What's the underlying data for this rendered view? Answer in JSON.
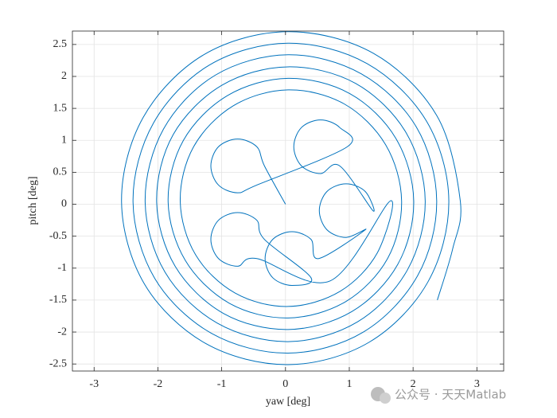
{
  "chart_data": {
    "type": "line",
    "xlabel": "yaw [deg]",
    "ylabel": "pitch [deg]",
    "watermark": "公众号 · 天天Matlab",
    "color": "#0072bd",
    "grid": true,
    "xlim": [
      -3.34,
      3.42
    ],
    "ylim": [
      -2.61,
      2.71
    ],
    "xticks": [
      -3,
      -2,
      -1,
      0,
      1,
      2,
      3
    ],
    "yticks": [
      -2.5,
      -2,
      -1.5,
      -1,
      -0.5,
      0,
      0.5,
      1,
      1.5,
      2,
      2.5
    ],
    "x": [
      0.0,
      -0.33,
      -0.45,
      -0.75,
      -1.05,
      -1.17,
      -1.05,
      -0.75,
      -0.45,
      0.97,
      0.85,
      0.55,
      0.25,
      0.13,
      0.25,
      0.55,
      0.85,
      1.37,
      1.25,
      0.95,
      0.65,
      0.53,
      0.65,
      0.95,
      1.25,
      0.52,
      0.4,
      0.1,
      -0.2,
      -0.32,
      -0.2,
      0.1,
      0.4,
      -0.33,
      -0.45,
      -0.75,
      -1.05,
      -1.17,
      -1.05,
      -0.75,
      -0.45,
      0.7,
      1.64,
      1.44,
      0.86,
      0.04,
      -0.79,
      -1.41,
      -1.65,
      -1.44,
      -0.82,
      0.04,
      0.92,
      1.57,
      1.82,
      1.6,
      0.95,
      0.04,
      -0.88,
      -1.57,
      -1.84,
      -1.6,
      -0.91,
      0.04,
      1.01,
      1.73,
      2.01,
      1.76,
      1.04,
      0.04,
      -0.97,
      -1.73,
      -2.02,
      -1.76,
      -1.0,
      0.04,
      1.1,
      1.89,
      2.19,
      1.91,
      1.13,
      0.04,
      -1.07,
      -1.89,
      -2.2,
      -1.91,
      -1.1,
      0.04,
      1.19,
      2.05,
      2.37,
      2.07,
      1.22,
      0.04,
      -1.16,
      -2.05,
      -2.39,
      -2.07,
      -1.19,
      0.04,
      1.28,
      2.21,
      2.56,
      2.23,
      1.31,
      0.04,
      -1.25,
      -2.21,
      -2.57,
      -2.23,
      -1.28,
      0.04,
      1.38,
      2.37,
      2.74,
      2.62,
      2.38
    ],
    "y": [
      0.0,
      0.6,
      0.9,
      1.02,
      0.9,
      0.6,
      0.3,
      0.18,
      0.3,
      0.9,
      1.2,
      1.32,
      1.2,
      0.9,
      0.6,
      0.48,
      0.6,
      -0.1,
      0.2,
      0.32,
      0.2,
      -0.1,
      -0.4,
      -0.52,
      -0.4,
      -0.85,
      -0.55,
      -0.43,
      -0.55,
      -0.85,
      -1.15,
      -1.27,
      -1.15,
      -0.55,
      -0.25,
      -0.13,
      -0.25,
      -0.55,
      -0.85,
      -0.97,
      -0.85,
      -1.2,
      0.05,
      -0.76,
      -1.36,
      -1.6,
      -1.39,
      -0.79,
      0.05,
      0.9,
      1.54,
      1.79,
      1.57,
      0.93,
      0.05,
      -0.85,
      -1.52,
      -1.78,
      -1.55,
      -0.88,
      0.05,
      1.0,
      1.7,
      1.97,
      1.73,
      1.03,
      0.05,
      -0.94,
      -1.68,
      -1.96,
      -1.71,
      -0.97,
      0.05,
      1.09,
      1.86,
      2.15,
      1.89,
      1.12,
      0.05,
      -1.03,
      -1.84,
      -2.15,
      -1.86,
      -1.06,
      0.05,
      1.18,
      2.02,
      2.34,
      2.04,
      1.21,
      0.05,
      -1.12,
      -2.0,
      -2.33,
      -2.02,
      -1.16,
      0.05,
      1.27,
      2.18,
      2.52,
      2.2,
      1.3,
      0.05,
      -1.22,
      -2.16,
      -2.51,
      -2.18,
      -1.25,
      0.05,
      1.36,
      2.34,
      2.7,
      2.36,
      1.39,
      0.05,
      -0.7,
      -1.5
    ]
  }
}
